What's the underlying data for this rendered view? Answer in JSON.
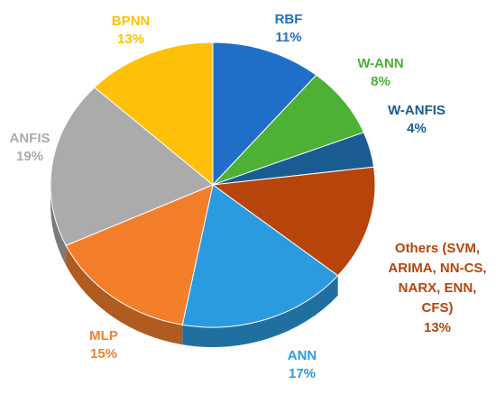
{
  "chart_data": {
    "type": "pie",
    "style": "3d",
    "title": "",
    "slices": [
      {
        "name": "RBF",
        "value": 11,
        "label": "11%",
        "color": "#1F6FC8"
      },
      {
        "name": "W-ANN",
        "value": 8,
        "label": "8%",
        "color": "#4CB135"
      },
      {
        "name": "W-ANFIS",
        "value": 4,
        "label": "4%",
        "color": "#1A5C91"
      },
      {
        "name": "Others (SVM, ARIMA, NN-CS, NARX, ENN, CFS)",
        "value": 13,
        "label": "13%",
        "color": "#B7440B",
        "name_lines": [
          "Others (SVM,",
          "ARIMA, NN-CS,",
          "NARX, ENN,",
          "CFS)"
        ]
      },
      {
        "name": "ANN",
        "value": 17,
        "label": "17%",
        "color": "#2B9BE0"
      },
      {
        "name": "MLP",
        "value": 15,
        "label": "15%",
        "color": "#F47F2B"
      },
      {
        "name": "ANFIS",
        "value": 19,
        "label": "19%",
        "color": "#ABABAB"
      },
      {
        "name": "BPNN",
        "value": 13,
        "label": "13%",
        "color": "#FEC108"
      }
    ]
  }
}
